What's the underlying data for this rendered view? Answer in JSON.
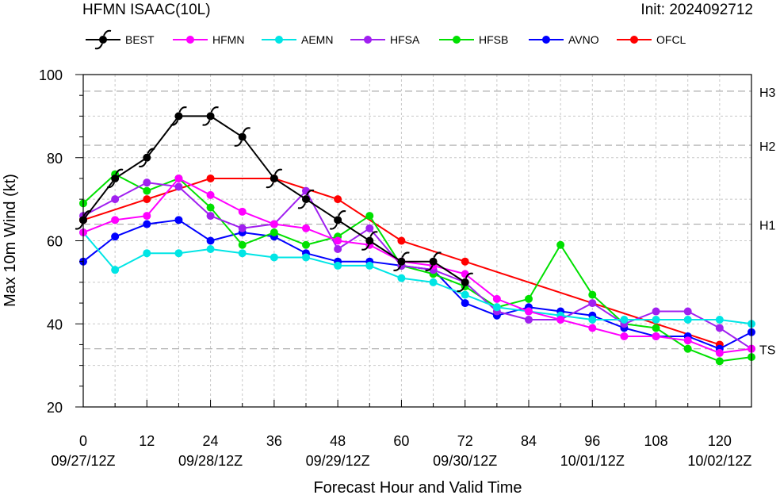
{
  "header": {
    "title": "HFMN ISAAC(10L)",
    "init": "Init: 2024092712"
  },
  "chart_data": {
    "type": "line",
    "xlabel": "Forecast Hour and Valid Time",
    "ylabel": "Max 10m Wind (kt)",
    "xlim": [
      0,
      126
    ],
    "ylim": [
      20,
      100
    ],
    "x_ticks": [
      0,
      12,
      24,
      36,
      48,
      60,
      72,
      84,
      96,
      108,
      120
    ],
    "x_date_ticks": [
      {
        "x": 0,
        "label": "09/27/12Z"
      },
      {
        "x": 24,
        "label": "09/28/12Z"
      },
      {
        "x": 48,
        "label": "09/29/12Z"
      },
      {
        "x": 72,
        "label": "09/30/12Z"
      },
      {
        "x": 96,
        "label": "10/01/12Z"
      },
      {
        "x": 120,
        "label": "10/02/12Z"
      }
    ],
    "y_ticks": [
      20,
      40,
      60,
      80,
      100
    ],
    "intensity_thresholds": [
      {
        "label": "TS",
        "value": 34
      },
      {
        "label": "H1",
        "value": 64
      },
      {
        "label": "H2",
        "value": 83
      },
      {
        "label": "H3",
        "value": 96
      }
    ],
    "grid": true,
    "legend": "top",
    "series": [
      {
        "name": "BEST",
        "color": "#000000",
        "marker": "hurricane-symbol",
        "x": [
          0,
          6,
          12,
          18,
          24,
          30,
          36,
          42,
          48,
          54,
          60,
          66,
          72
        ],
        "y": [
          65,
          75,
          80,
          90,
          90,
          85,
          75,
          70,
          65,
          60,
          55,
          55,
          50
        ]
      },
      {
        "name": "HFMN",
        "color": "#ff00ff",
        "x": [
          0,
          6,
          12,
          18,
          24,
          30,
          36,
          42,
          48,
          54,
          60,
          66,
          72,
          78,
          84,
          90,
          96,
          102,
          108,
          114,
          120,
          126
        ],
        "y": [
          62,
          65,
          66,
          75,
          71,
          67,
          64,
          63,
          60,
          59,
          55,
          54,
          52,
          46,
          43,
          41,
          39,
          37,
          37,
          36,
          33,
          34
        ]
      },
      {
        "name": "AEMN",
        "color": "#00e5e5",
        "x": [
          0,
          6,
          12,
          18,
          24,
          30,
          36,
          42,
          48,
          54,
          60,
          66,
          72,
          78,
          84,
          90,
          96,
          102,
          108,
          114,
          120,
          126
        ],
        "y": [
          62,
          53,
          57,
          57,
          58,
          57,
          56,
          56,
          54,
          54,
          51,
          50,
          47,
          44,
          43,
          42,
          41,
          41,
          41,
          41,
          41,
          40
        ]
      },
      {
        "name": "HFSA",
        "color": "#a020f0",
        "x": [
          0,
          6,
          12,
          18,
          24,
          30,
          36,
          42,
          48,
          54,
          60,
          66,
          72,
          78,
          84,
          90,
          96,
          102,
          108,
          114,
          120,
          126
        ],
        "y": [
          66,
          70,
          74,
          73,
          66,
          63,
          64,
          72,
          58,
          63,
          54,
          53,
          50,
          43,
          41,
          41,
          45,
          40,
          43,
          43,
          39,
          34
        ]
      },
      {
        "name": "HFSB",
        "color": "#00e000",
        "x": [
          0,
          6,
          12,
          18,
          24,
          30,
          36,
          42,
          48,
          54,
          60,
          66,
          72,
          78,
          84,
          90,
          96,
          102,
          108,
          114,
          120,
          126
        ],
        "y": [
          69,
          76,
          72,
          75,
          68,
          59,
          62,
          59,
          61,
          66,
          54,
          52,
          49,
          44,
          46,
          59,
          47,
          40,
          39,
          34,
          31,
          32
        ]
      },
      {
        "name": "AVNO",
        "color": "#0000ff",
        "x": [
          0,
          6,
          12,
          18,
          24,
          30,
          36,
          42,
          48,
          54,
          60,
          66,
          72,
          78,
          84,
          90,
          96,
          102,
          108,
          114,
          120,
          126
        ],
        "y": [
          55,
          61,
          64,
          65,
          60,
          62,
          61,
          57,
          55,
          55,
          54,
          53,
          45,
          42,
          44,
          43,
          42,
          39,
          37,
          37,
          34,
          38
        ]
      },
      {
        "name": "OFCL",
        "color": "#ff0000",
        "x": [
          0,
          12,
          24,
          36,
          48,
          60,
          72,
          120
        ],
        "y": [
          65,
          70,
          75,
          75,
          70,
          60,
          55,
          35
        ]
      }
    ]
  }
}
